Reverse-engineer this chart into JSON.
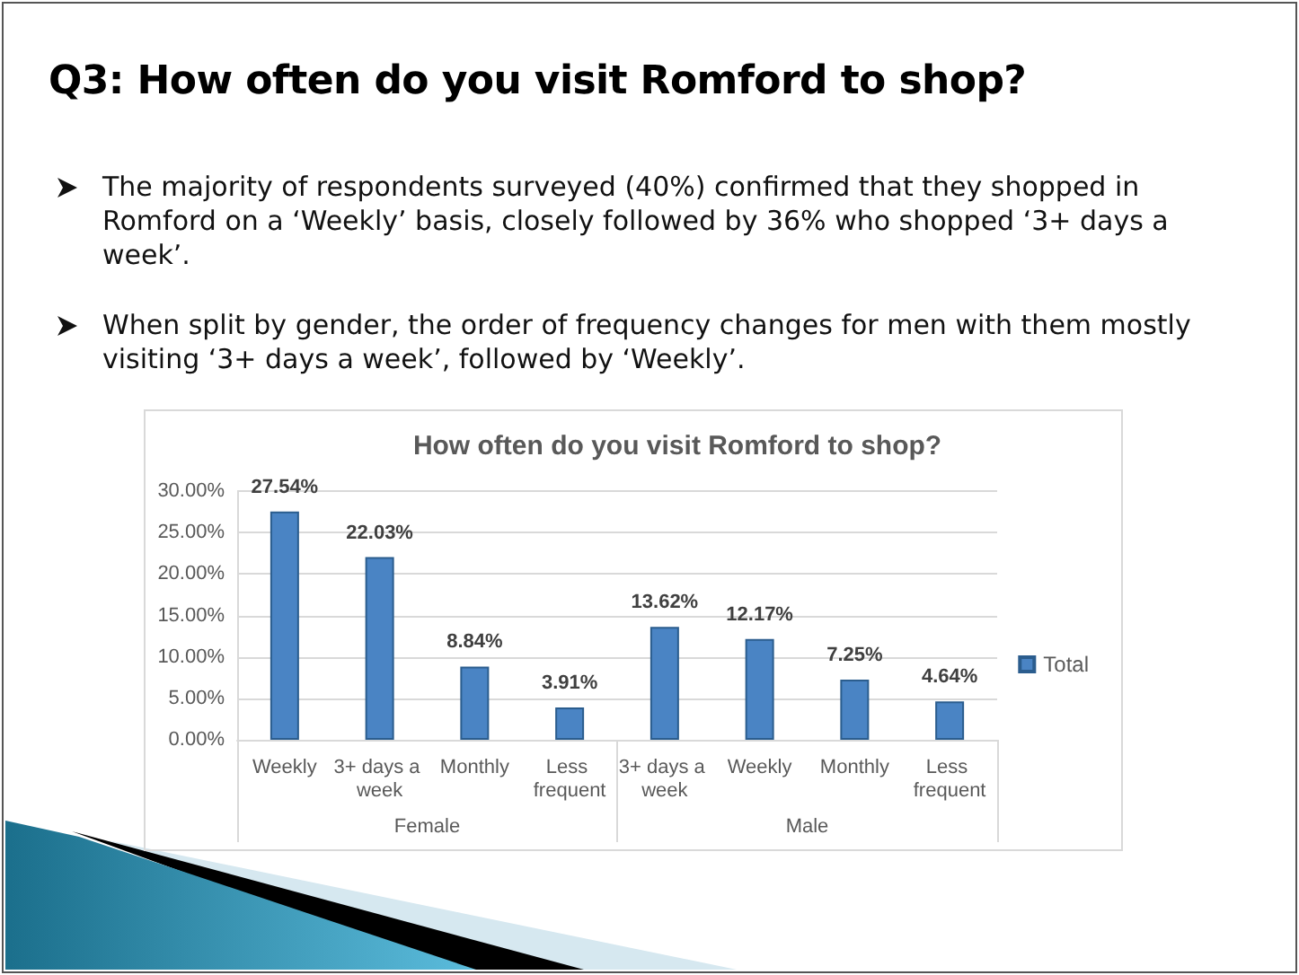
{
  "chart_data": {
    "type": "bar",
    "title": "How often do you visit Romford to shop?",
    "categories": [
      "Weekly",
      "3+ days a week",
      "Monthly",
      "Less frequent",
      "3+ days a week",
      "Weekly",
      "Monthly",
      "Less frequent"
    ],
    "series": [
      {
        "name": "Total",
        "color": "#4a84c4",
        "values": [
          27.54,
          22.03,
          8.84,
          3.91,
          13.62,
          12.17,
          7.25,
          4.64
        ],
        "value_labels": [
          "27.54%",
          "22.03%",
          "8.84%",
          "3.91%",
          "13.62%",
          "12.17%",
          "7.25%",
          "4.64%"
        ]
      }
    ],
    "ylim": [
      0,
      30
    ],
    "yticks": [
      {
        "value": 0,
        "label": "0.00%"
      },
      {
        "value": 5,
        "label": "5.00%"
      },
      {
        "value": 10,
        "label": "10.00%"
      },
      {
        "value": 15,
        "label": "15.00%"
      },
      {
        "value": 20,
        "label": "20.00%"
      },
      {
        "value": 25,
        "label": "25.00%"
      },
      {
        "value": 30,
        "label": "30.00%"
      }
    ],
    "grid": "y",
    "legend": "right",
    "annotations": [
      "Q3: How often do you visit Romford to shop?",
      "The majority of respondents surveyed (40%) confirmed that they shopped in Romford on a ‘Weekly’ basis, closely followed by 36% who shopped ‘3+ days a week’.",
      "When split by gender, the order of frequency changes for men with them mostly visiting ‘3+ days a week’, followed by ‘Weekly’.",
      "Female",
      "Male"
    ]
  }
}
